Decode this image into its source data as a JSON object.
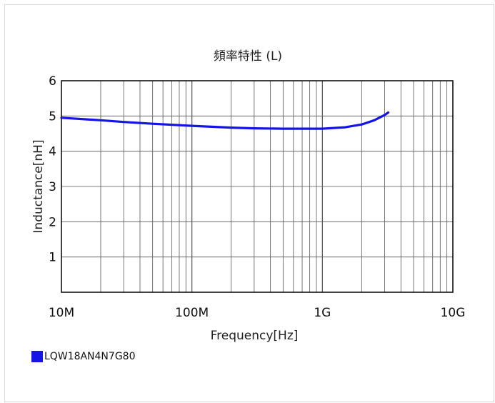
{
  "chart_data": {
    "type": "line",
    "title": "頻率特性 (L)",
    "xlabel": "Frequency[Hz]",
    "ylabel": "Inductance[nH]",
    "x_scale": "log",
    "xlim": [
      10000000,
      10000000000
    ],
    "ylim": [
      0,
      6
    ],
    "x_tick_values": [
      10000000,
      100000000,
      1000000000,
      10000000000
    ],
    "x_tick_labels": [
      "10M",
      "100M",
      "1G",
      "10G"
    ],
    "y_tick_values": [
      1,
      2,
      3,
      4,
      5,
      6
    ],
    "y_tick_labels": [
      "1",
      "2",
      "3",
      "4",
      "5",
      "6"
    ],
    "grid": true,
    "legend_position": "bottom-left",
    "series": [
      {
        "name": "LQW18AN4N7G80",
        "color": "#1414e6",
        "x": [
          10000000,
          20000000,
          30000000,
          50000000,
          100000000,
          200000000,
          300000000,
          500000000,
          1000000000,
          1500000000,
          2000000000,
          2500000000,
          3000000000,
          3200000000
        ],
        "y": [
          4.95,
          4.88,
          4.83,
          4.78,
          4.72,
          4.67,
          4.65,
          4.64,
          4.64,
          4.68,
          4.76,
          4.88,
          5.03,
          5.1
        ]
      }
    ]
  }
}
